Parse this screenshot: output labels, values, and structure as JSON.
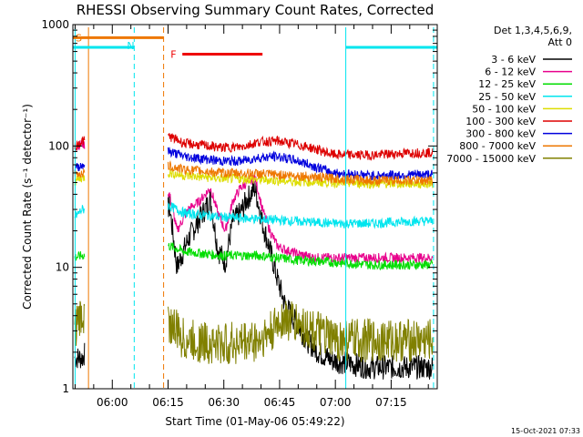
{
  "chart_data": {
    "type": "line",
    "title": "RHESSI Observing Summary Count Rates, Corrected",
    "xlabel": "Start Time (01-May-06 05:49:22)",
    "ylabel": "Corrected Count Rate (s⁻¹ detector⁻¹)",
    "yscale": "log",
    "ylim": [
      1,
      1000
    ],
    "xlim_minutes": [
      0,
      98
    ],
    "x_ticks": [
      {
        "label": "06:00",
        "minute": 10.6
      },
      {
        "label": "06:15",
        "minute": 25.6
      },
      {
        "label": "06:30",
        "minute": 40.6
      },
      {
        "label": "06:45",
        "minute": 55.6
      },
      {
        "label": "07:00",
        "minute": 70.6
      },
      {
        "label": "07:15",
        "minute": 85.6
      }
    ],
    "y_ticks": [
      {
        "label": "1",
        "value": 1
      },
      {
        "label": "10",
        "value": 10
      },
      {
        "label": "100",
        "value": 100
      },
      {
        "label": "1000",
        "value": 1000
      }
    ],
    "legend_header": [
      "Det 1,3,4,5,6,9,",
      "Att 0"
    ],
    "series": [
      {
        "name": "3 - 6 keV",
        "color": "#000000",
        "x": [
          0,
          2.5,
          26,
          28,
          31,
          34,
          37,
          39,
          41,
          43,
          45,
          47,
          49,
          51,
          53,
          55,
          57,
          60,
          63,
          66,
          70,
          75,
          80,
          85,
          92
        ],
        "y": [
          1.8,
          1.8,
          32,
          10,
          17,
          25,
          36,
          14,
          11,
          24,
          28,
          37,
          45,
          23,
          14,
          8,
          5,
          3.5,
          2.5,
          2,
          1.7,
          1.6,
          1.5,
          1.5,
          1.5
        ]
      },
      {
        "name": "6 - 12 keV",
        "color": "#e8008c",
        "x": [
          0,
          2.5,
          26,
          28,
          31,
          34,
          37,
          39,
          41,
          43,
          45,
          47,
          49,
          51,
          53,
          55,
          57,
          60,
          65,
          75,
          92
        ],
        "y": [
          95,
          105,
          40,
          20,
          30,
          35,
          45,
          28,
          20,
          35,
          45,
          50,
          55,
          30,
          20,
          15,
          14,
          13,
          12,
          12,
          12
        ]
      },
      {
        "name": "12 - 25 keV",
        "color": "#00dd00",
        "x": [
          0,
          2.5,
          26,
          30,
          40,
          50,
          60,
          70,
          80,
          92
        ],
        "y": [
          12,
          12.5,
          15,
          13.5,
          12.5,
          12.5,
          11.5,
          11,
          10.5,
          10.5
        ]
      },
      {
        "name": "25 - 50 keV",
        "color": "#00e5ee",
        "x": [
          0,
          2.5,
          26,
          30,
          40,
          50,
          60,
          70,
          80,
          92
        ],
        "y": [
          25,
          30,
          32,
          28,
          26,
          25,
          24,
          23,
          23,
          24
        ]
      },
      {
        "name": "50 - 100 keV",
        "color": "#dddd00",
        "x": [
          0,
          2.5,
          26,
          30,
          40,
          50,
          60,
          70,
          80,
          92
        ],
        "y": [
          50,
          55,
          60,
          57,
          54,
          53,
          51,
          50,
          49,
          49
        ]
      },
      {
        "name": "100 - 300 keV",
        "color": "#dd0000",
        "x": [
          0,
          2.5,
          26,
          30,
          40,
          45,
          50,
          55,
          60,
          65,
          70,
          80,
          92
        ],
        "y": [
          95,
          110,
          120,
          105,
          97,
          98,
          108,
          110,
          103,
          95,
          85,
          84,
          88
        ]
      },
      {
        "name": "300 - 800 keV",
        "color": "#0000dd",
        "x": [
          0,
          2.5,
          26,
          30,
          40,
          45,
          50,
          55,
          60,
          65,
          70,
          80,
          92
        ],
        "y": [
          64,
          70,
          90,
          82,
          75,
          75,
          80,
          82,
          76,
          68,
          60,
          57,
          58
        ]
      },
      {
        "name": "800 - 7000 keV",
        "color": "#ee7700",
        "x": [
          0,
          2.5,
          26,
          30,
          40,
          50,
          60,
          70,
          80,
          92
        ],
        "y": [
          57,
          60,
          68,
          64,
          60,
          59,
          57,
          54,
          52,
          52
        ]
      },
      {
        "name": "7000 - 15000 keV",
        "color": "#808000",
        "x": [
          0,
          2.5,
          26,
          30,
          40,
          50,
          54,
          56,
          60,
          70,
          80,
          92
        ],
        "y": [
          3,
          4,
          3.5,
          2.5,
          2.3,
          2.5,
          3,
          3.8,
          3.5,
          2.5,
          2.5,
          2.5
        ]
      }
    ],
    "flags": [
      {
        "letter": "S",
        "color": "#ee7700",
        "start_minute": 0,
        "end_minute": 24.4,
        "level": 780
      },
      {
        "letter": "N",
        "color": "#00e5ee",
        "start_minute": 0,
        "end_minute": 16.5,
        "level": 650
      },
      {
        "letter": "F",
        "color": "#ee0000",
        "start_minute": 27,
        "end_minute": 51,
        "level": 570
      },
      {
        "letter": "",
        "color": "#00e5ee",
        "start_minute": 73.4,
        "end_minute": 98,
        "level": 650
      }
    ],
    "vertical_markers": [
      {
        "minute": 0.6,
        "color": "#00e5ee",
        "style": "solid"
      },
      {
        "minute": 4.2,
        "color": "#ee7700",
        "style": "solid"
      },
      {
        "minute": 16.5,
        "color": "#00e5ee",
        "style": "dashed"
      },
      {
        "minute": 24.4,
        "color": "#ee7700",
        "style": "dashed"
      },
      {
        "minute": 73.4,
        "color": "#00e5ee",
        "style": "solid"
      },
      {
        "minute": 97.0,
        "color": "#00e5ee",
        "style": "dashed"
      }
    ]
  },
  "timestamp": "15-Oct-2021 07:33"
}
